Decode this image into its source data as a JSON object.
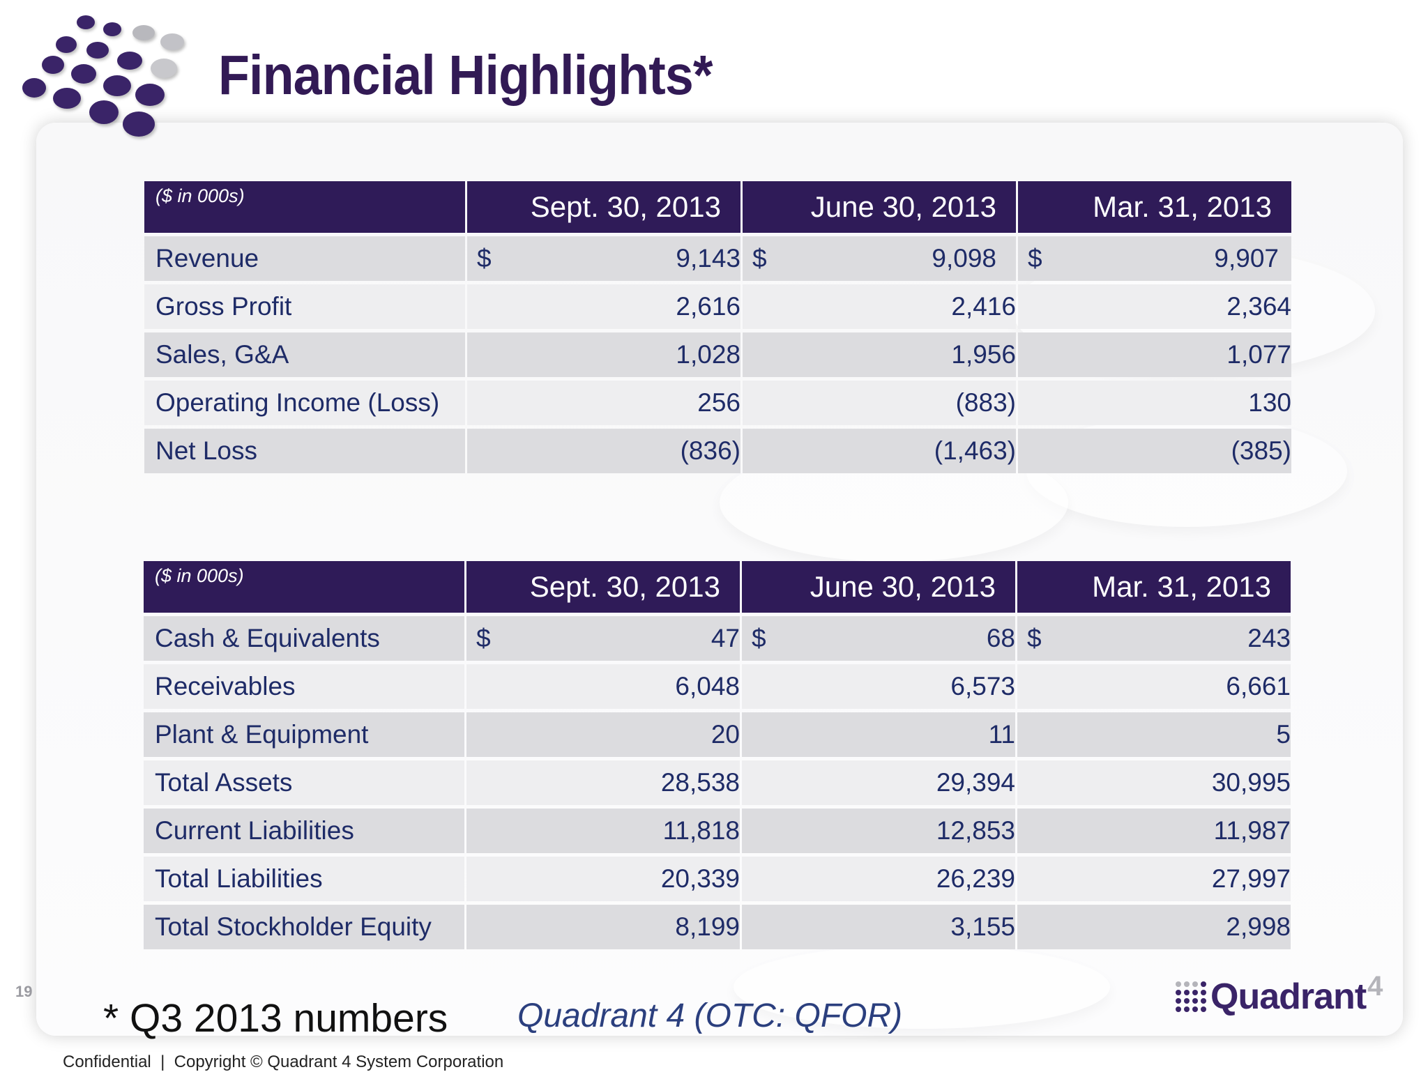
{
  "header": {
    "title": "Financial Highlights*"
  },
  "income_table": {
    "unit_label": "($ in 000s)",
    "columns": [
      "Sept. 30, 2013",
      "June 30, 2013",
      "Mar. 31, 2013"
    ],
    "currency_symbol": "$",
    "rows": [
      {
        "label": "Revenue",
        "values": [
          "9,143",
          "9,098",
          "9,907"
        ],
        "currency": true
      },
      {
        "label": "Gross Profit",
        "values": [
          "2,616",
          "2,416",
          "2,364"
        ],
        "currency": false
      },
      {
        "label": "Sales, G&A",
        "values": [
          "1,028",
          "1,956",
          "1,077"
        ],
        "currency": false
      },
      {
        "label": "Operating Income (Loss)",
        "values": [
          "256",
          "(883)",
          "130"
        ],
        "currency": false
      },
      {
        "label": "Net Loss",
        "values": [
          "(836)",
          "(1,463)",
          "(385)"
        ],
        "currency": false
      }
    ]
  },
  "balance_table": {
    "unit_label": "($ in 000s)",
    "columns": [
      "Sept. 30, 2013",
      "June 30, 2013",
      "Mar. 31, 2013"
    ],
    "currency_symbol": "$",
    "rows": [
      {
        "label": "Cash & Equivalents",
        "values": [
          "47",
          "68",
          "243"
        ],
        "currency": true
      },
      {
        "label": "Receivables",
        "values": [
          "6,048",
          "6,573",
          "6,661"
        ],
        "currency": false
      },
      {
        "label": "Plant & Equipment",
        "values": [
          "20",
          "11",
          "5"
        ],
        "currency": false
      },
      {
        "label": "Total Assets",
        "values": [
          "28,538",
          "29,394",
          "30,995"
        ],
        "currency": false
      },
      {
        "label": "Current Liabilities",
        "values": [
          "11,818",
          "12,853",
          "11,987"
        ],
        "currency": false
      },
      {
        "label": "Total Liabilities",
        "values": [
          "20,339",
          "26,239",
          "27,997"
        ],
        "currency": false
      },
      {
        "label": "Total Stockholder Equity",
        "values": [
          "8,199",
          "3,155",
          "2,998"
        ],
        "currency": false
      }
    ]
  },
  "footer": {
    "page_number": "19",
    "footnote": "* Q3 2013 numbers",
    "ticker": "Quadrant 4 (OTC: QFOR)",
    "copyright": "Confidential  |  Copyright © Quadrant 4 System Corporation",
    "brand_name": "Quadrant",
    "brand_superscript": "4"
  },
  "colors": {
    "brand_purple": "#321a55",
    "header_fill": "#2f1b58",
    "row_dark": "#dcdcdf",
    "row_light": "#eeeef0",
    "body_text": "#1e2b67"
  }
}
